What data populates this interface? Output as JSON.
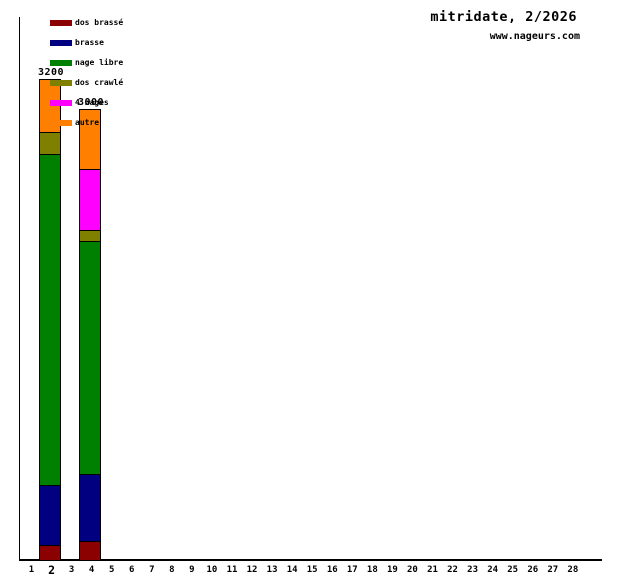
{
  "header": {
    "title": "mitridate, 2/2026",
    "site": "www.nageurs.com"
  },
  "chart_data": {
    "type": "bar",
    "stacked": true,
    "title": "mitridate, 2/2026",
    "subtitle": "www.nageurs.com",
    "unit": "meters swum per day",
    "grid": false,
    "legend_position": "top-left",
    "y_axis_tick_labels": [],
    "categories": [
      1,
      2,
      3,
      4,
      5,
      6,
      7,
      8,
      9,
      10,
      11,
      12,
      13,
      14,
      15,
      16,
      17,
      18,
      19,
      20,
      21,
      22,
      23,
      24,
      25,
      26,
      27,
      28
    ],
    "bold_category": 2,
    "series": [
      {
        "name": "dos brassé",
        "color": "#8b0000",
        "values_by_day": {
          "2": 100,
          "4": 125
        }
      },
      {
        "name": "brasse",
        "color": "#000080",
        "values_by_day": {
          "2": 400,
          "4": 450
        }
      },
      {
        "name": "nage libre",
        "color": "#008000",
        "values_by_day": {
          "2": 2200,
          "4": 1550
        }
      },
      {
        "name": "dos crawlé",
        "color": "#808000",
        "values_by_day": {
          "2": 150,
          "4": 75
        }
      },
      {
        "name": "4 nages",
        "color": "#ff00ff",
        "values_by_day": {
          "2": 0,
          "4": 400
        }
      },
      {
        "name": "autre",
        "color": "#ff8000",
        "values_by_day": {
          "2": 350,
          "4": 400
        }
      }
    ],
    "bars": [
      {
        "day": 2,
        "total": 3200,
        "values": [
          100,
          400,
          2200,
          150,
          0,
          350
        ]
      },
      {
        "day": 4,
        "total": 3000,
        "values": [
          125,
          450,
          1550,
          75,
          400,
          400
        ]
      }
    ]
  }
}
